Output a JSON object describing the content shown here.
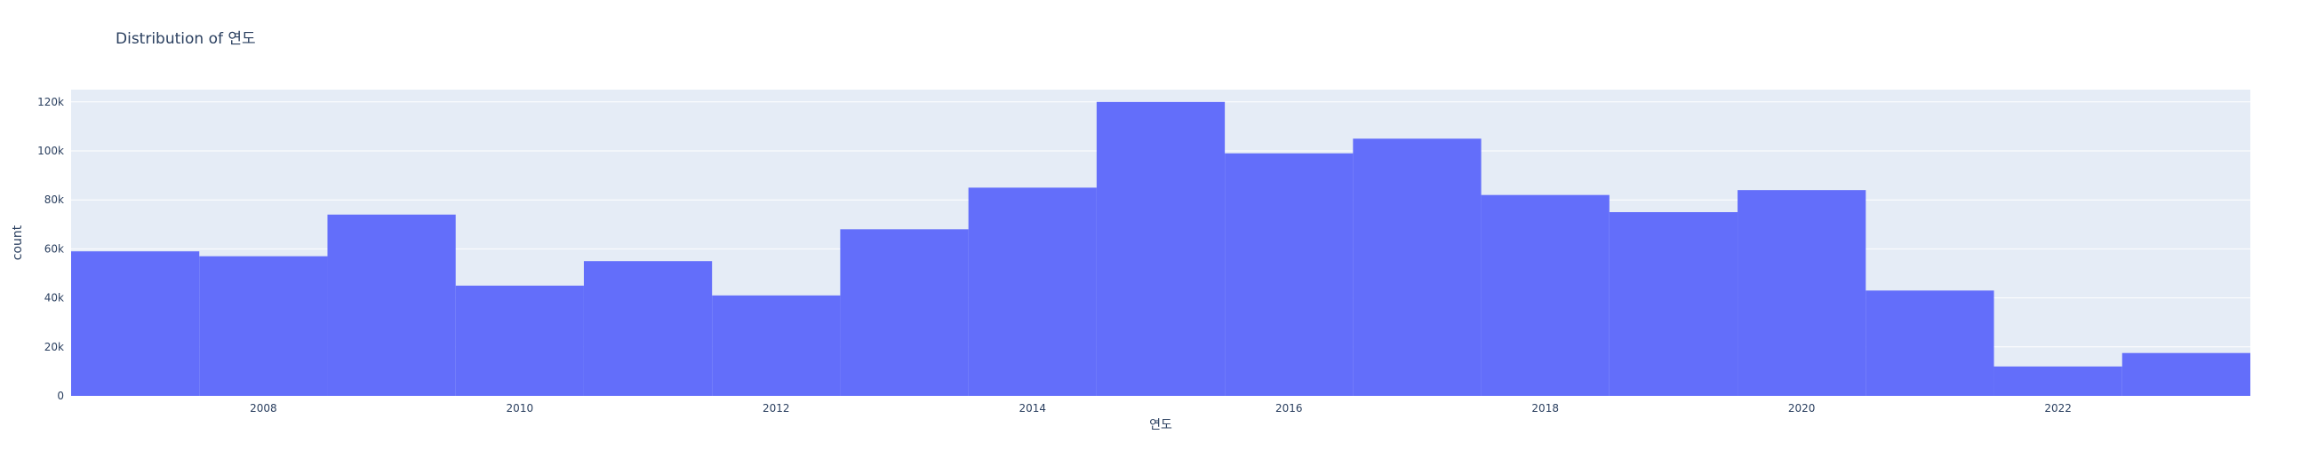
{
  "chart_data": {
    "type": "bar",
    "title": "Distribution of 연도",
    "xlabel": "연도",
    "ylabel": "count",
    "bar_color": "#636efa",
    "plot_bg": "#e5ecf6",
    "grid": true,
    "bin_width": 1,
    "xlim": [
      2006.5,
      2023.5
    ],
    "ylim": [
      0,
      125000
    ],
    "categories": [
      "2007",
      "2008",
      "2009",
      "2010",
      "2011",
      "2012",
      "2013",
      "2014",
      "2015",
      "2016",
      "2017",
      "2018",
      "2019",
      "2020",
      "2021",
      "2022",
      "2023"
    ],
    "values": [
      59000,
      57000,
      74000,
      45000,
      55000,
      41000,
      68000,
      85000,
      120000,
      99000,
      105000,
      82000,
      75000,
      84000,
      43000,
      12000,
      17500
    ],
    "x_ticks": [
      {
        "value": 2008,
        "label": "2008"
      },
      {
        "value": 2010,
        "label": "2010"
      },
      {
        "value": 2012,
        "label": "2012"
      },
      {
        "value": 2014,
        "label": "2014"
      },
      {
        "value": 2016,
        "label": "2016"
      },
      {
        "value": 2018,
        "label": "2018"
      },
      {
        "value": 2020,
        "label": "2020"
      },
      {
        "value": 2022,
        "label": "2022"
      }
    ],
    "y_ticks": [
      {
        "value": 0,
        "label": "0"
      },
      {
        "value": 20000,
        "label": "20k"
      },
      {
        "value": 40000,
        "label": "40k"
      },
      {
        "value": 60000,
        "label": "60k"
      },
      {
        "value": 80000,
        "label": "80k"
      },
      {
        "value": 100000,
        "label": "100k"
      },
      {
        "value": 120000,
        "label": "120k"
      }
    ]
  }
}
